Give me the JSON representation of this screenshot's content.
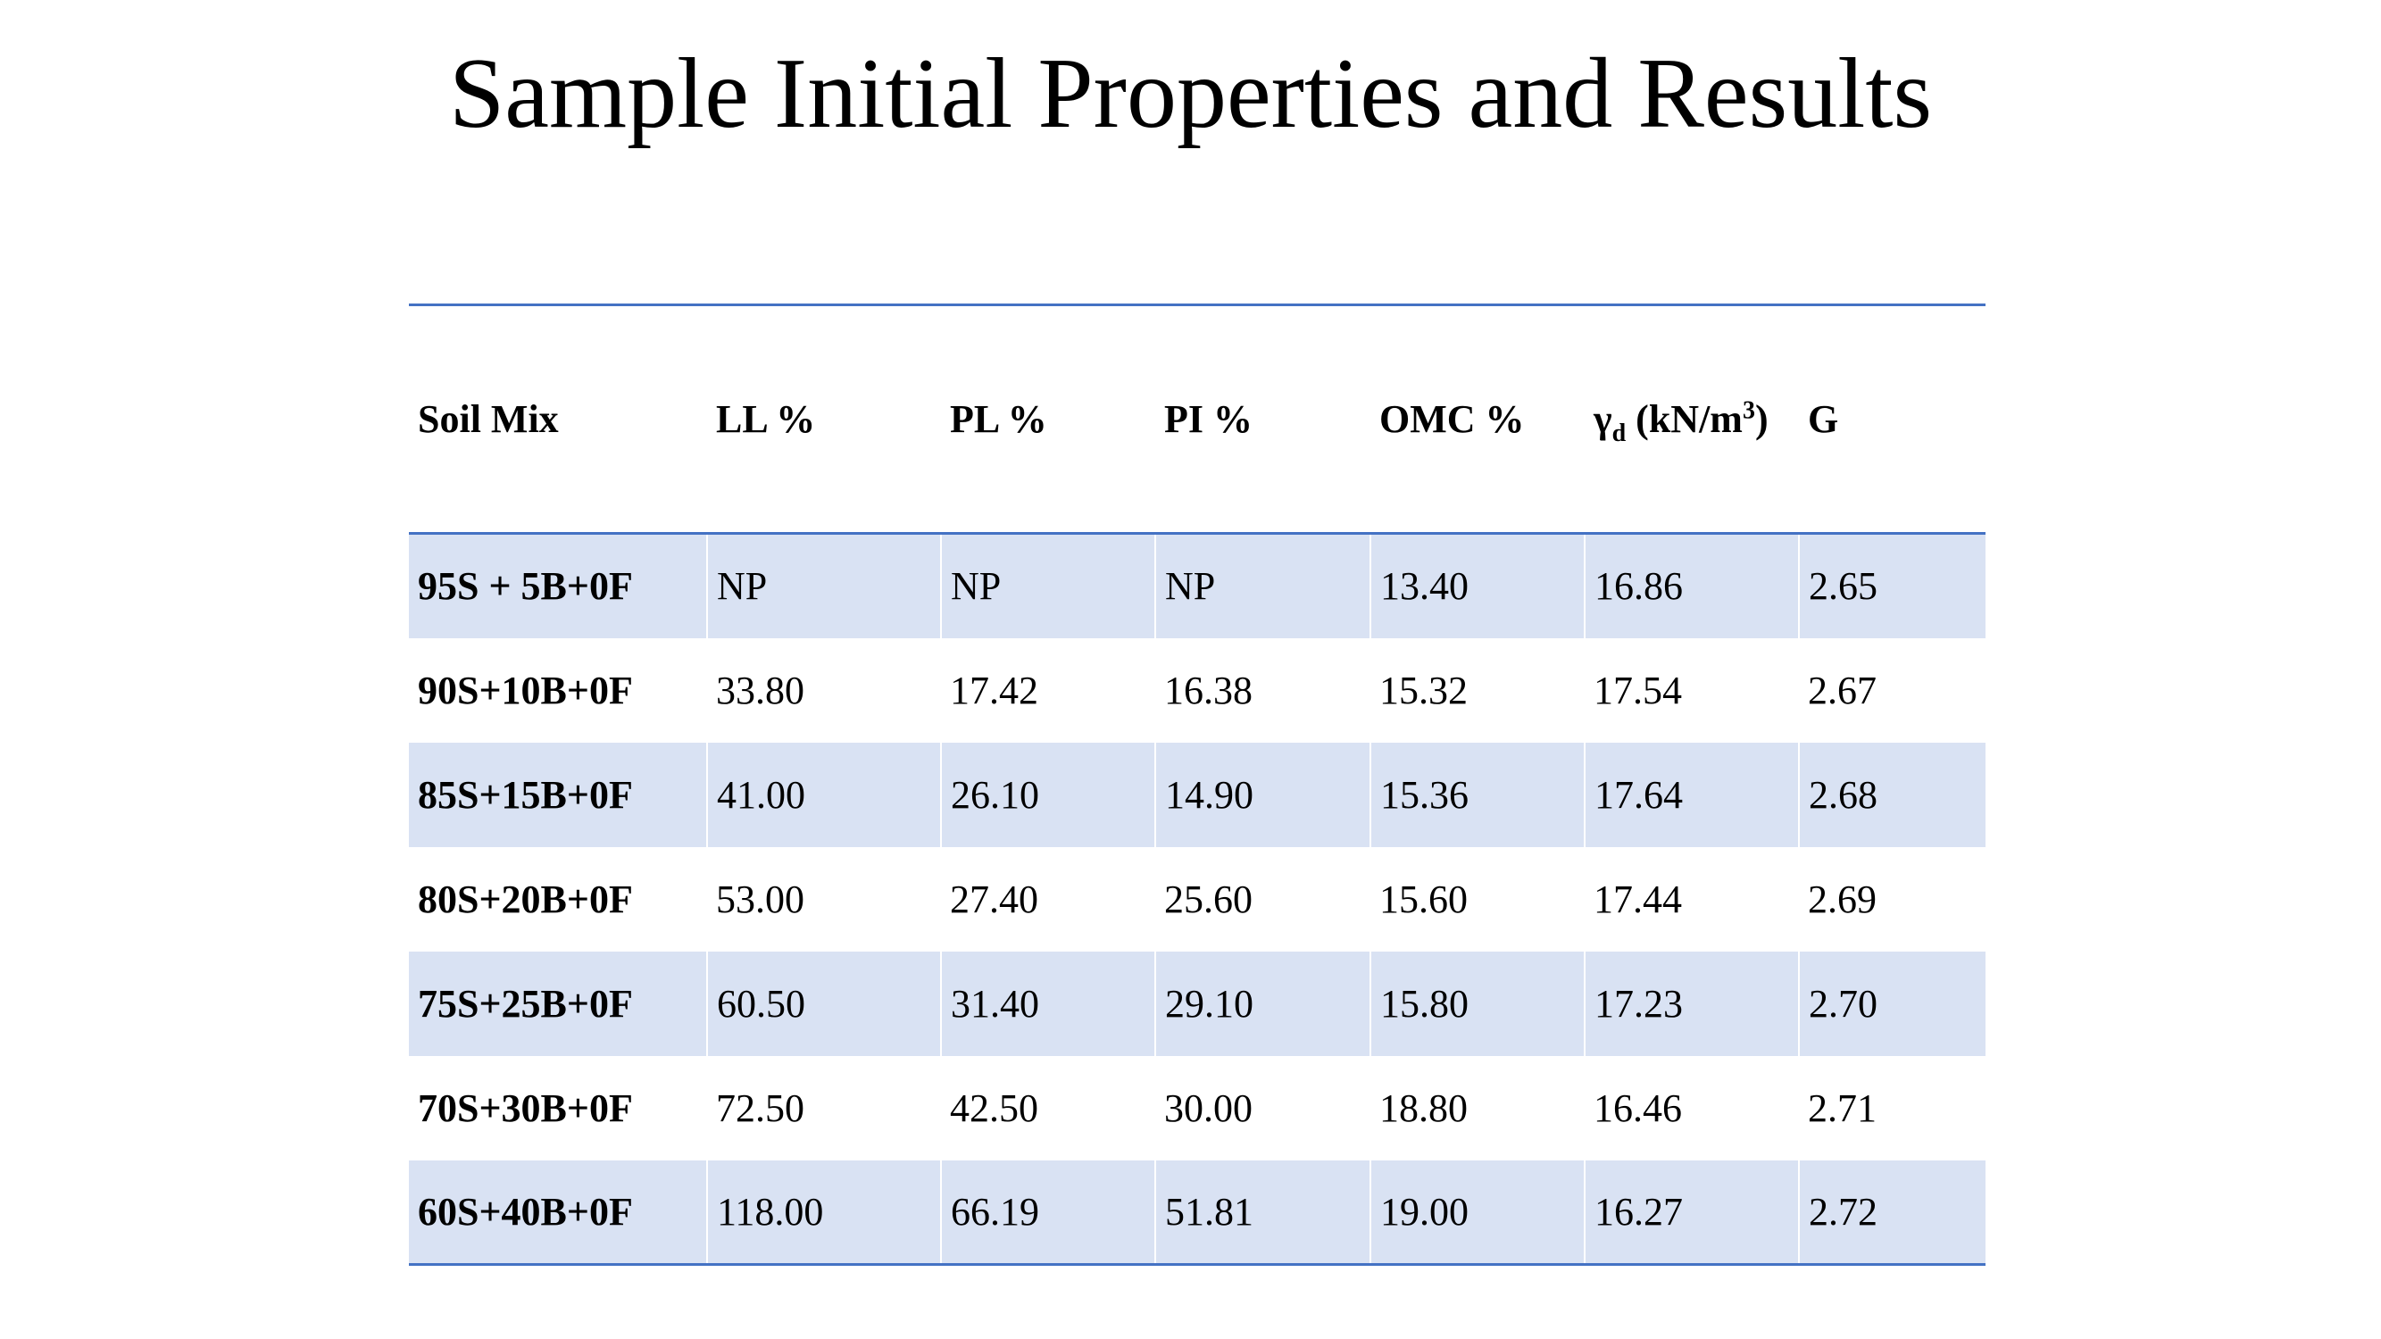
{
  "title": "Sample Initial Properties and Results",
  "colors": {
    "rule": "#4472c4",
    "band": "#d9e2f3"
  },
  "table": {
    "headers": {
      "soil_mix": "Soil Mix",
      "ll": "LL %",
      "pl": "PL %",
      "pi": "PI %",
      "omc": "OMC %",
      "gamma_symbol": "γ",
      "gamma_sub": "d",
      "gamma_unit_open": " (kN/m",
      "gamma_unit_sup": "3",
      "gamma_unit_close": ")",
      "g": "G"
    },
    "rows": [
      [
        "95S + 5B+0F",
        "NP",
        "NP",
        "NP",
        "13.40",
        "16.86",
        "2.65"
      ],
      [
        "90S+10B+0F",
        "33.80",
        "17.42",
        "16.38",
        "15.32",
        "17.54",
        "2.67"
      ],
      [
        "85S+15B+0F",
        "41.00",
        "26.10",
        "14.90",
        "15.36",
        "17.64",
        "2.68"
      ],
      [
        "80S+20B+0F",
        "53.00",
        "27.40",
        "25.60",
        "15.60",
        "17.44",
        "2.69"
      ],
      [
        "75S+25B+0F",
        "60.50",
        "31.40",
        "29.10",
        "15.80",
        "17.23",
        "2.70"
      ],
      [
        "70S+30B+0F",
        "72.50",
        "42.50",
        "30.00",
        "18.80",
        "16.46",
        "2.71"
      ],
      [
        "60S+40B+0F",
        "118.00",
        "66.19",
        "51.81",
        "19.00",
        "16.27",
        "2.72"
      ]
    ]
  }
}
